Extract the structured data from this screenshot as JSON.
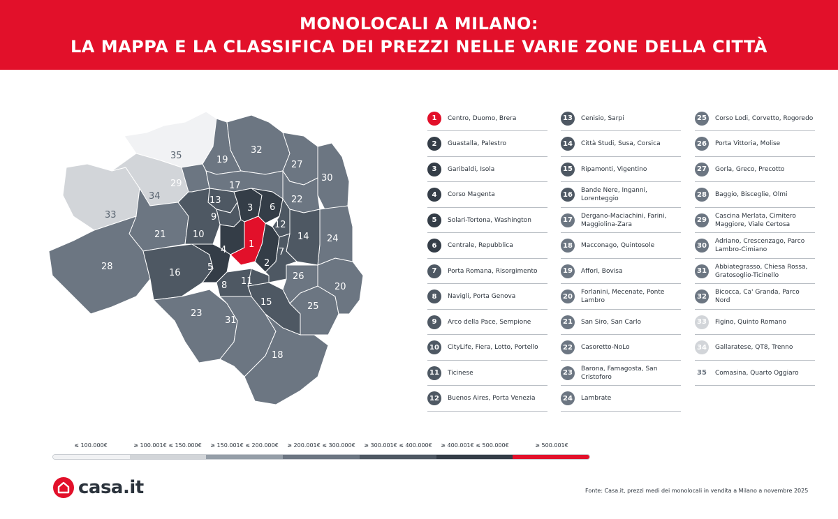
{
  "header": {
    "title_line1": "MONOLOCALI A MILANO:",
    "title_line2": "LA MAPPA E LA CLASSIFICA DEI PREZZI NELLE VARIE ZONE DELLA CITTÀ"
  },
  "colors": {
    "brand_red": "#e2102a",
    "tier_1": "#f1f2f4",
    "tier_2": "#d2d5d9",
    "tier_3": "#959ea8",
    "tier_4": "#6c7682",
    "tier_5": "#4e5863",
    "tier_6": "#343d47",
    "tier_7": "#e2102a"
  },
  "zones": [
    {
      "n": "1",
      "name": "Centro, Duomo, Brera",
      "tier": 7
    },
    {
      "n": "2",
      "name": "Guastalla, Palestro",
      "tier": 6
    },
    {
      "n": "3",
      "name": "Garibaldi, Isola",
      "tier": 6
    },
    {
      "n": "4",
      "name": "Corso Magenta",
      "tier": 6
    },
    {
      "n": "5",
      "name": "Solari-Tortona, Washington",
      "tier": 6
    },
    {
      "n": "6",
      "name": "Centrale, Repubblica",
      "tier": 6
    },
    {
      "n": "7",
      "name": "Porta Romana, Risorgimento",
      "tier": 5
    },
    {
      "n": "8",
      "name": "Navigli, Porta Genova",
      "tier": 5
    },
    {
      "n": "9",
      "name": "Arco della Pace, Sempione",
      "tier": 5
    },
    {
      "n": "10",
      "name": "CityLife, Fiera, Lotto, Portello",
      "tier": 5
    },
    {
      "n": "11",
      "name": "Ticinese",
      "tier": 5
    },
    {
      "n": "12",
      "name": "Buenos Aires, Porta Venezia",
      "tier": 5
    },
    {
      "n": "13",
      "name": "Cenisio, Sarpi",
      "tier": 5
    },
    {
      "n": "14",
      "name": "Città Studi, Susa, Corsica",
      "tier": 5
    },
    {
      "n": "15",
      "name": "Ripamonti, Vigentino",
      "tier": 5
    },
    {
      "n": "16",
      "name": "Bande Nere, Inganni, Lorenteggio",
      "tier": 5
    },
    {
      "n": "17",
      "name": "Dergano-Maciachini, Farini, Maggiolina-Zara",
      "tier": 4
    },
    {
      "n": "18",
      "name": "Macconago, Quintosole",
      "tier": 4
    },
    {
      "n": "19",
      "name": "Affori, Bovisa",
      "tier": 4
    },
    {
      "n": "20",
      "name": "Forlanini, Mecenate, Ponte Lambro",
      "tier": 4
    },
    {
      "n": "21",
      "name": "San Siro, San Carlo",
      "tier": 4
    },
    {
      "n": "22",
      "name": "Casoretto-NoLo",
      "tier": 4
    },
    {
      "n": "23",
      "name": "Barona, Famagosta, San Cristoforo",
      "tier": 4
    },
    {
      "n": "24",
      "name": "Lambrate",
      "tier": 4
    },
    {
      "n": "25",
      "name": "Corso Lodi, Corvetto, Rogoredo",
      "tier": 4
    },
    {
      "n": "26",
      "name": "Porta Vittoria, Molise",
      "tier": 4
    },
    {
      "n": "27",
      "name": "Gorla, Greco, Precotto",
      "tier": 4
    },
    {
      "n": "28",
      "name": "Baggio, Bisceglie, Olmi",
      "tier": 4
    },
    {
      "n": "29",
      "name": "Cascina Merlata, Cimitero Maggiore, Viale Certosa",
      "tier": 4
    },
    {
      "n": "30",
      "name": "Adriano, Crescenzago, Parco Lambro-Cimiano",
      "tier": 4
    },
    {
      "n": "31",
      "name": "Abbiategrasso, Chiesa Rossa, Gratosoglio-Ticinello",
      "tier": 4
    },
    {
      "n": "32",
      "name": "Bicocca, Ca' Granda, Parco Nord",
      "tier": 4
    },
    {
      "n": "33",
      "name": "Figino, Quinto Romano",
      "tier": 2
    },
    {
      "n": "34",
      "name": "Gallaratese, QT8, Trenno",
      "tier": 2
    },
    {
      "n": "35",
      "name": "Comasina, Quarto Oggiaro",
      "tier": 1
    }
  ],
  "legend": {
    "labels": [
      "≤ 100.000€",
      "≥ 100.001€ ≤ 150.000€",
      "≥ 150.001€ ≤ 200.000€",
      "≥ 200.001€ ≤ 300.000€",
      "≥ 300.001€ ≤ 400.000€",
      "≥ 400.001€ ≤ 500.000€",
      "≥  500.001€"
    ]
  },
  "footer": {
    "logo_text": "casa.it",
    "source": "Fonte: Casa.it, prezzi medi dei monolocali in vendita a Milano a novembre 2025"
  }
}
